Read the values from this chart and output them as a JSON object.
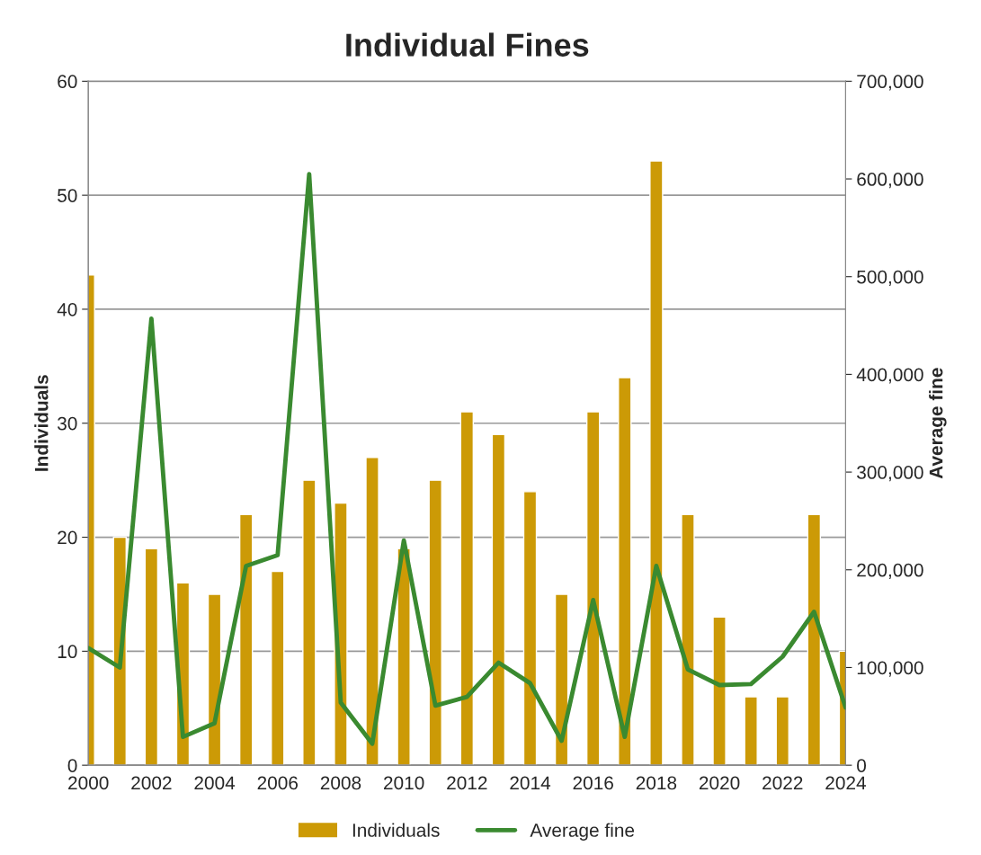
{
  "chart_data": {
    "type": "bar",
    "title": "Individual Fines",
    "ylabel": "Individuals",
    "y2label": "Average fine",
    "x": [
      2000,
      2001,
      2002,
      2003,
      2004,
      2005,
      2006,
      2007,
      2008,
      2009,
      2010,
      2011,
      2012,
      2013,
      2014,
      2015,
      2016,
      2017,
      2018,
      2019,
      2020,
      2021,
      2022,
      2023,
      2024
    ],
    "series": [
      {
        "name": "Individuals",
        "color": "#cc9a06",
        "values": [
          43,
          20,
          19,
          16,
          15,
          22,
          17,
          25,
          23,
          27,
          19,
          25,
          31,
          29,
          24,
          15,
          31,
          34,
          53,
          22,
          13,
          6,
          6,
          22,
          10
        ]
      },
      {
        "name": "Average fine",
        "type": "line",
        "axis": "y2",
        "color": "#3a8a30",
        "values": [
          120000,
          100000,
          457000,
          29000,
          43000,
          204000,
          215000,
          605000,
          64000,
          22000,
          230000,
          61000,
          70000,
          105000,
          84000,
          25000,
          169000,
          29000,
          204000,
          98000,
          82000,
          83000,
          111000,
          157000,
          59000
        ]
      }
    ],
    "xlim": [
      2000,
      2024
    ],
    "xticks": [
      2000,
      2002,
      2004,
      2006,
      2008,
      2010,
      2012,
      2014,
      2016,
      2018,
      2020,
      2022,
      2024
    ],
    "ylim": [
      0,
      60
    ],
    "yticks": [
      0,
      10,
      20,
      30,
      40,
      50,
      60
    ],
    "y2lim": [
      0,
      700000
    ],
    "y2ticks": [
      0,
      {
        "value": 100000,
        "label": "100,000"
      },
      {
        "value": 200000,
        "label": "200,000"
      },
      {
        "value": 300000,
        "label": "300,000"
      },
      {
        "value": 400000,
        "label": "400,000"
      },
      {
        "value": 500000,
        "label": "500,000"
      },
      {
        "value": 600000,
        "label": "600,000"
      },
      {
        "value": 700000,
        "label": "700,000"
      }
    ],
    "grid": "y",
    "legend": "bottom",
    "line_style": "solid",
    "marker": "none"
  }
}
